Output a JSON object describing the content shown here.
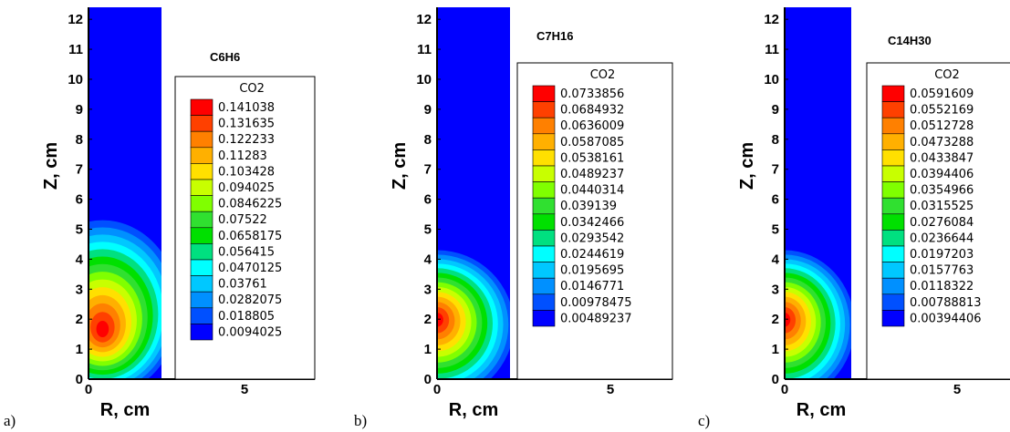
{
  "colors": {
    "background_field": "#0000ff",
    "frame": "#000000"
  },
  "chart_data": [
    {
      "type": "heatmap",
      "panel_label": "a)",
      "title": "C6H6",
      "xlabel": "R, cm",
      "ylabel": "Z, cm",
      "xlim": [
        0,
        7.5
      ],
      "ylim": [
        0,
        12.4
      ],
      "x_ticks": [
        "0",
        "5"
      ],
      "y_ticks": [
        "0",
        "1",
        "2",
        "3",
        "4",
        "5",
        "6",
        "7",
        "8",
        "9",
        "10",
        "11",
        "12"
      ],
      "domain_width": 2.3,
      "peak": [
        0.45,
        1.6
      ],
      "flame_height": 5.3,
      "legend_title": "CO2",
      "legend_levels": [
        "0.141038",
        "0.131635",
        "0.122233",
        "0.11283",
        "0.103428",
        "0.094025",
        "0.0846225",
        "0.07522",
        "0.0658175",
        "0.056415",
        "0.0470125",
        "0.03761",
        "0.0282075",
        "0.018805",
        "0.0094025"
      ]
    },
    {
      "type": "heatmap",
      "panel_label": "b)",
      "title": "C7H16",
      "xlabel": "R, cm",
      "ylabel": "Z, cm",
      "xlim": [
        0,
        7.5
      ],
      "ylim": [
        0,
        12.4
      ],
      "x_ticks": [
        "0",
        "5"
      ],
      "y_ticks": [
        "0",
        "1",
        "2",
        "3",
        "4",
        "5",
        "6",
        "7",
        "8",
        "9",
        "10",
        "11",
        "12"
      ],
      "domain_width": 2.3,
      "peak": [
        0.0,
        2.0
      ],
      "flame_height": 4.3,
      "legend_title": "CO2",
      "legend_levels": [
        "0.0733856",
        "0.0684932",
        "0.0636009",
        "0.0587085",
        "0.0538161",
        "0.0489237",
        "0.0440314",
        "0.039139",
        "0.0342466",
        "0.0293542",
        "0.0244619",
        "0.0195695",
        "0.0146771",
        "0.00978475",
        "0.00489237"
      ]
    },
    {
      "type": "heatmap",
      "panel_label": "c)",
      "title": "C14H30",
      "xlabel": "R, cm",
      "ylabel": "Z, cm",
      "xlim": [
        0,
        7.5
      ],
      "ylim": [
        0,
        12.4
      ],
      "x_ticks": [
        "0",
        "5"
      ],
      "y_ticks": [
        "0",
        "1",
        "2",
        "3",
        "4",
        "5",
        "6",
        "7",
        "8",
        "9",
        "10",
        "11",
        "12"
      ],
      "domain_width": 2.3,
      "peak": [
        0.0,
        2.0
      ],
      "flame_height": 4.3,
      "legend_title": "CO2",
      "legend_levels": [
        "0.0591609",
        "0.0552169",
        "0.0512728",
        "0.0473288",
        "0.0433847",
        "0.0394406",
        "0.0354966",
        "0.0315525",
        "0.0276084",
        "0.0236644",
        "0.0197203",
        "0.0157763",
        "0.0118322",
        "0.00788813",
        "0.00394406"
      ]
    }
  ],
  "legend_palette": [
    "#ff0000",
    "#ff4000",
    "#ff8000",
    "#ffb000",
    "#ffe000",
    "#c8ff00",
    "#80ff00",
    "#30e030",
    "#00e000",
    "#00e080",
    "#00ffff",
    "#00c8ff",
    "#0090ff",
    "#0050ff",
    "#0000ff"
  ]
}
